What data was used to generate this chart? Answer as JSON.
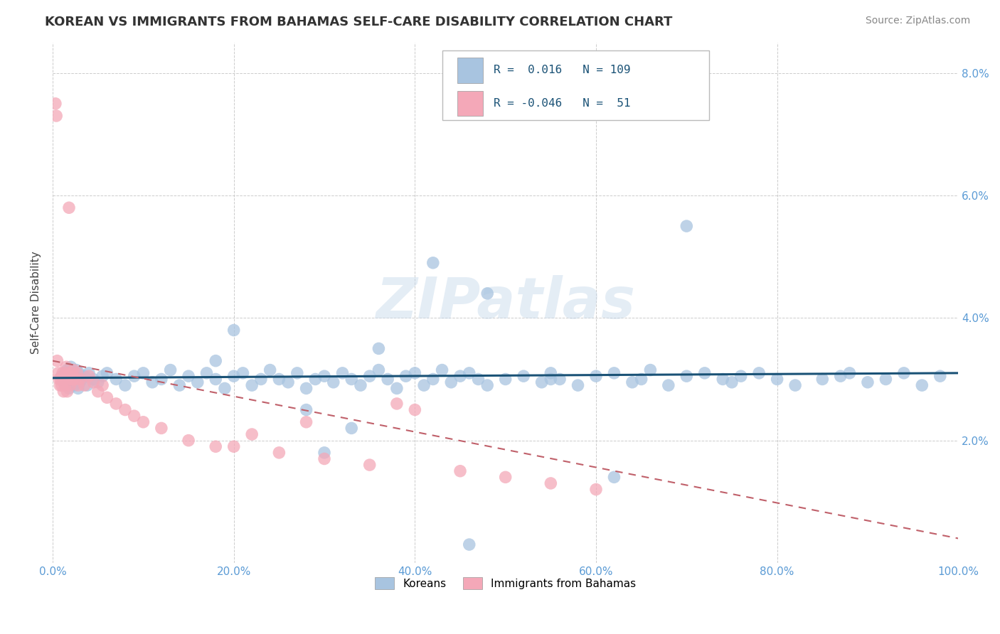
{
  "title": "KOREAN VS IMMIGRANTS FROM BAHAMAS SELF-CARE DISABILITY CORRELATION CHART",
  "source": "Source: ZipAtlas.com",
  "ylabel": "Self-Care Disability",
  "r_korean": 0.016,
  "n_korean": 109,
  "r_bahamas": -0.046,
  "n_bahamas": 51,
  "color_korean": "#a8c4e0",
  "color_bahamas": "#f4a8b8",
  "line_color_korean": "#1a5276",
  "line_color_bahamas": "#c0606a",
  "axis_color": "#5b9bd5",
  "watermark": "ZIPatlas",
  "xlim": [
    0,
    100
  ],
  "ylim": [
    0,
    8.5
  ],
  "korean_x": [
    1.0,
    1.2,
    1.4,
    1.5,
    1.6,
    1.7,
    1.8,
    1.9,
    2.0,
    2.1,
    2.2,
    2.3,
    2.4,
    2.5,
    2.6,
    2.7,
    2.8,
    2.9,
    3.0,
    3.2,
    3.5,
    3.8,
    4.0,
    4.5,
    5.0,
    5.5,
    6.0,
    7.0,
    8.0,
    9.0,
    10.0,
    11.0,
    12.0,
    13.0,
    14.0,
    15.0,
    16.0,
    17.0,
    18.0,
    19.0,
    20.0,
    21.0,
    22.0,
    23.0,
    24.0,
    25.0,
    26.0,
    27.0,
    28.0,
    29.0,
    30.0,
    31.0,
    32.0,
    33.0,
    34.0,
    35.0,
    36.0,
    37.0,
    38.0,
    39.0,
    40.0,
    41.0,
    42.0,
    43.0,
    44.0,
    45.0,
    46.0,
    47.0,
    48.0,
    50.0,
    52.0,
    54.0,
    55.0,
    56.0,
    58.0,
    60.0,
    62.0,
    64.0,
    65.0,
    66.0,
    68.0,
    70.0,
    72.0,
    74.0,
    75.0,
    76.0,
    78.0,
    80.0,
    82.0,
    85.0,
    87.0,
    88.0,
    90.0,
    92.0,
    94.0,
    96.0,
    98.0,
    36.0,
    48.0,
    55.0,
    20.0,
    28.0,
    42.0,
    33.0,
    18.0,
    62.0,
    30.0,
    46.0,
    70.0
  ],
  "korean_y": [
    3.05,
    2.95,
    3.1,
    2.9,
    3.15,
    3.0,
    2.85,
    3.05,
    3.2,
    2.95,
    3.1,
    3.0,
    2.9,
    3.05,
    3.15,
    3.0,
    2.85,
    3.1,
    2.95,
    3.0,
    3.05,
    2.9,
    3.1,
    3.0,
    2.95,
    3.05,
    3.1,
    3.0,
    2.9,
    3.05,
    3.1,
    2.95,
    3.0,
    3.15,
    2.9,
    3.05,
    2.95,
    3.1,
    3.0,
    2.85,
    3.05,
    3.1,
    2.9,
    3.0,
    3.15,
    3.0,
    2.95,
    3.1,
    2.85,
    3.0,
    3.05,
    2.95,
    3.1,
    3.0,
    2.9,
    3.05,
    3.15,
    3.0,
    2.85,
    3.05,
    3.1,
    2.9,
    3.0,
    3.15,
    2.95,
    3.05,
    3.1,
    3.0,
    2.9,
    3.0,
    3.05,
    2.95,
    3.1,
    3.0,
    2.9,
    3.05,
    3.1,
    2.95,
    3.0,
    3.15,
    2.9,
    3.05,
    3.1,
    3.0,
    2.95,
    3.05,
    3.1,
    3.0,
    2.9,
    3.0,
    3.05,
    3.1,
    2.95,
    3.0,
    3.1,
    2.9,
    3.05,
    3.5,
    4.4,
    3.0,
    3.8,
    2.5,
    4.9,
    2.2,
    3.3,
    1.4,
    1.8,
    0.3,
    5.5
  ],
  "bahamas_x": [
    0.3,
    0.4,
    0.5,
    0.6,
    0.7,
    0.8,
    0.9,
    1.0,
    1.1,
    1.2,
    1.3,
    1.4,
    1.5,
    1.6,
    1.7,
    1.8,
    1.9,
    2.0,
    2.1,
    2.2,
    2.3,
    2.5,
    2.7,
    3.0,
    3.5,
    4.0,
    4.5,
    5.0,
    5.5,
    6.0,
    7.0,
    8.0,
    9.0,
    10.0,
    12.0,
    15.0,
    18.0,
    20.0,
    22.0,
    25.0,
    28.0,
    30.0,
    35.0,
    38.0,
    40.0,
    45.0,
    50.0,
    55.0,
    60.0,
    1.5,
    2.8
  ],
  "bahamas_y": [
    7.5,
    7.3,
    3.3,
    3.1,
    3.0,
    2.9,
    3.0,
    2.9,
    3.1,
    2.8,
    3.0,
    2.9,
    3.1,
    2.8,
    3.05,
    5.8,
    2.9,
    3.0,
    3.1,
    3.0,
    3.15,
    3.0,
    3.1,
    3.0,
    2.9,
    3.05,
    2.95,
    2.8,
    2.9,
    2.7,
    2.6,
    2.5,
    2.4,
    2.3,
    2.2,
    2.0,
    1.9,
    1.9,
    2.1,
    1.8,
    2.3,
    1.7,
    1.6,
    2.6,
    2.5,
    1.5,
    1.4,
    1.3,
    1.2,
    3.2,
    2.9
  ],
  "line_korean_x0": 0,
  "line_korean_x1": 100,
  "line_korean_y0": 3.02,
  "line_korean_y1": 3.1,
  "line_bahamas_x0": 0,
  "line_bahamas_x1": 100,
  "line_bahamas_y0": 3.3,
  "line_bahamas_y1": 0.4
}
